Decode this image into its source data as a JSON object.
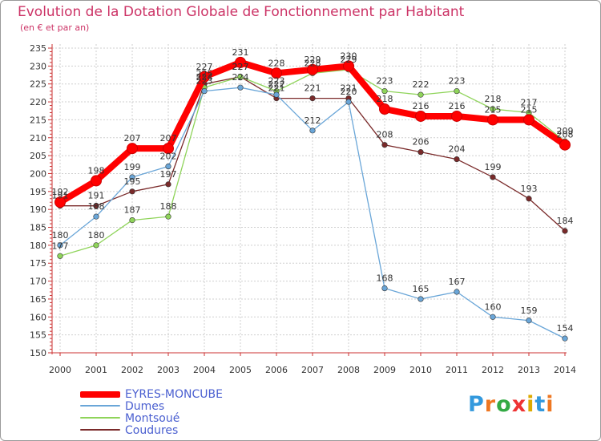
{
  "header": {
    "title": "Evolution de la Dotation Globale de Fonctionnement par Habitant",
    "subtitle": "(en € et par an)"
  },
  "chart_data": {
    "type": "line",
    "title": "Evolution de la Dotation Globale de Fonctionnement par Habitant",
    "ylabel": "(en € et par an)",
    "xlabel": "",
    "ylim": [
      150,
      235
    ],
    "yticks": [
      150,
      155,
      160,
      165,
      170,
      175,
      180,
      185,
      190,
      195,
      200,
      205,
      210,
      215,
      220,
      225,
      230,
      235
    ],
    "x": [
      "2000",
      "2001",
      "2002",
      "2003",
      "2004",
      "2005",
      "2006",
      "2007",
      "2008",
      "2009",
      "2010",
      "2011",
      "2012",
      "2013",
      "2014"
    ],
    "grid": true,
    "legend_position": "bottom-left",
    "series": [
      {
        "name": "EYRES-MONCUBE",
        "color": "#ff0000",
        "values": [
          192,
          198,
          207,
          207,
          227,
          231,
          228,
          229,
          230,
          218,
          216,
          216,
          215,
          215,
          208
        ]
      },
      {
        "name": "Dumes",
        "color": "#6aa6d8",
        "values": [
          180,
          188,
          199,
          202,
          223,
          224,
          222,
          212,
          220,
          168,
          165,
          167,
          160,
          159,
          154
        ]
      },
      {
        "name": "Montsoué",
        "color": "#8fd45a",
        "values": [
          177,
          180,
          187,
          188,
          224,
          227,
          223,
          228,
          229,
          223,
          222,
          223,
          218,
          217,
          209
        ]
      },
      {
        "name": "Coudures",
        "color": "#7a2a2a",
        "values": [
          191,
          191,
          195,
          197,
          225,
          227,
          221,
          221,
          221,
          208,
          206,
          204,
          199,
          193,
          184
        ]
      }
    ]
  },
  "branding": {
    "logo_text": "Proxiti",
    "letter_colors": [
      "#3399dd",
      "#ee7722",
      "#33aa44",
      "#ee3333",
      "#ddaa00",
      "#3399dd",
      "#ee7722"
    ]
  }
}
